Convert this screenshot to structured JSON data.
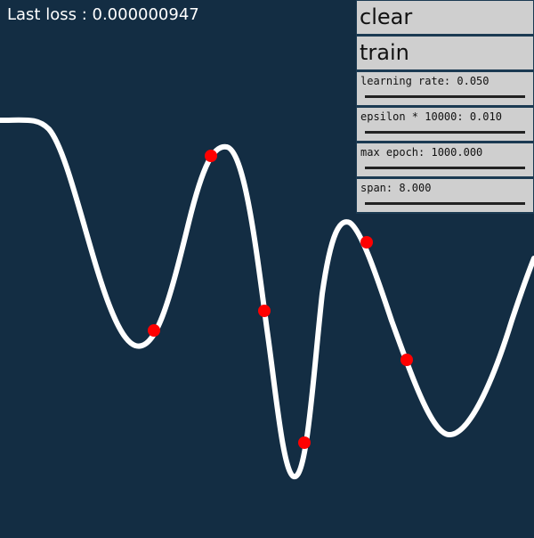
{
  "loss": {
    "label": "Last loss : 0.000000947"
  },
  "controls": {
    "clear_label": "clear",
    "train_label": "train",
    "sliders": [
      {
        "label": "learning rate: 0.050"
      },
      {
        "label": "epsilon * 10000: 0.010"
      },
      {
        "label": "max epoch: 1000.000"
      },
      {
        "label": "span: 8.000"
      }
    ]
  },
  "colors": {
    "background": "#132d43",
    "curve": "#ffffff",
    "points": "#ff0000",
    "panel": "#cfcfcf"
  }
}
